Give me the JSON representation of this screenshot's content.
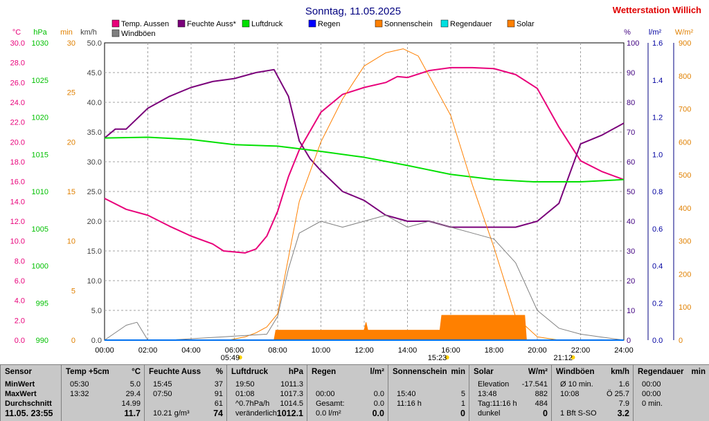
{
  "chart_data": {
    "type": "line",
    "title": "Sonntag, 11.05.2025",
    "station": "Wetterstation Willich",
    "x_ticks": [
      "00:00",
      "02:00",
      "04:00",
      "06:00",
      "08:00",
      "10:00",
      "12:00",
      "14:00",
      "16:00",
      "18:00",
      "20:00",
      "22:00",
      "24:00"
    ],
    "xlim": [
      "00:00",
      "24:00"
    ],
    "grid": true,
    "legend_position": "top",
    "legend": [
      {
        "name": "Temp. Aussen",
        "color": "#e8007a"
      },
      {
        "name": "Feuchte Auss*",
        "color": "#7a007a"
      },
      {
        "name": "Luftdruck",
        "color": "#00e000"
      },
      {
        "name": "Regen",
        "color": "#0000ff"
      },
      {
        "name": "Sonnenschein",
        "color": "#ff8000"
      },
      {
        "name": "Regendauer",
        "color": "#00e0e0"
      },
      {
        "name": "Solar",
        "color": "#ff8000"
      },
      {
        "name": "Windböen",
        "color": "#808080"
      }
    ],
    "axes": [
      {
        "unit": "°C",
        "color": "#e8007a",
        "min": 0,
        "max": 30,
        "ticks": [
          "0.0",
          "2.0",
          "4.0",
          "6.0",
          "8.0",
          "10.0",
          "12.0",
          "14.0",
          "16.0",
          "18.0",
          "20.0",
          "22.0",
          "24.0",
          "26.0",
          "28.0",
          "30.0"
        ]
      },
      {
        "unit": "hPa",
        "color": "#00c000",
        "min": 990,
        "max": 1030,
        "ticks": [
          "990",
          "995",
          "1000",
          "1005",
          "1010",
          "1015",
          "1020",
          "1025",
          "1030"
        ]
      },
      {
        "unit": "min",
        "color": "#e08000",
        "min": 0,
        "max": 30,
        "ticks": [
          "0",
          "5",
          "10",
          "15",
          "20",
          "25",
          "30"
        ]
      },
      {
        "unit": "km/h",
        "color": "#404040",
        "min": 0,
        "max": 50,
        "ticks": [
          "0.0",
          "5.0",
          "10.0",
          "15.0",
          "20.0",
          "25.0",
          "30.0",
          "35.0",
          "40.0",
          "45.0",
          "50.0"
        ]
      },
      {
        "unit": "%",
        "color": "#400080",
        "min": 0,
        "max": 100,
        "ticks": [
          "0",
          "10",
          "20",
          "30",
          "40",
          "50",
          "60",
          "70",
          "80",
          "90",
          "100"
        ]
      },
      {
        "unit": "l/m²",
        "color": "#0000a0",
        "min": 0,
        "max": 1.6,
        "ticks": [
          "0.0",
          "0.2",
          "0.4",
          "0.6",
          "0.8",
          "1.0",
          "1.2",
          "1.4",
          "1.6"
        ]
      },
      {
        "unit": "W/m²",
        "color": "#e08000",
        "min": 0,
        "max": 900,
        "ticks": [
          "0",
          "100",
          "200",
          "300",
          "400",
          "500",
          "600",
          "700",
          "800",
          "900"
        ]
      }
    ],
    "series": [
      {
        "name": "Temp. Aussen",
        "unit": "°C",
        "x": [
          "00:00",
          "01:00",
          "02:00",
          "03:00",
          "04:00",
          "05:00",
          "05:30",
          "06:30",
          "07:00",
          "07:30",
          "08:00",
          "08:30",
          "09:00",
          "10:00",
          "11:00",
          "12:00",
          "13:00",
          "13:32",
          "14:00",
          "15:00",
          "16:00",
          "17:00",
          "18:00",
          "19:00",
          "20:00",
          "21:00",
          "22:00",
          "23:00",
          "24:00"
        ],
        "values": [
          14.3,
          13.2,
          12.6,
          11.5,
          10.5,
          9.7,
          9.0,
          8.8,
          9.2,
          10.5,
          13.0,
          16.5,
          19.2,
          23.0,
          24.8,
          25.5,
          26.0,
          26.6,
          26.5,
          27.2,
          27.5,
          27.5,
          27.4,
          26.8,
          25.4,
          21.5,
          18.1,
          17.0,
          16.2
        ]
      },
      {
        "name": "Feuchte Auss*",
        "unit": "%",
        "x": [
          "00:00",
          "00:30",
          "01:00",
          "02:00",
          "03:00",
          "04:00",
          "05:00",
          "06:00",
          "07:00",
          "07:50",
          "08:30",
          "09:00",
          "09:30",
          "10:00",
          "11:00",
          "12:00",
          "13:00",
          "14:00",
          "15:00",
          "16:00",
          "17:00",
          "18:00",
          "19:00",
          "20:00",
          "21:00",
          "22:00",
          "23:00",
          "24:00"
        ],
        "values": [
          68,
          71,
          71,
          78,
          82,
          85,
          87,
          88,
          90,
          91,
          82,
          67,
          61,
          57,
          50,
          47,
          42,
          40,
          40,
          38,
          38,
          38,
          38,
          40,
          46,
          66,
          69,
          73
        ]
      },
      {
        "name": "Luftdruck",
        "unit": "hPa",
        "x": [
          "00:00",
          "02:00",
          "04:00",
          "06:00",
          "08:00",
          "10:00",
          "12:00",
          "14:00",
          "15:00",
          "16:00",
          "18:00",
          "19:50",
          "20:00",
          "22:00",
          "24:00"
        ],
        "values": [
          1017.2,
          1017.3,
          1017.0,
          1016.3,
          1016.1,
          1015.4,
          1014.6,
          1013.5,
          1012.9,
          1012.3,
          1011.6,
          1011.3,
          1011.3,
          1011.3,
          1011.6
        ]
      },
      {
        "name": "Solar",
        "unit": "W/m²",
        "x": [
          "05:45",
          "06:30",
          "07:00",
          "07:30",
          "08:00",
          "08:30",
          "09:00",
          "10:00",
          "11:00",
          "12:00",
          "13:00",
          "13:48",
          "14:30",
          "15:00",
          "16:00",
          "17:00",
          "18:00",
          "19:00",
          "20:00",
          "21:00"
        ],
        "values": [
          0,
          10,
          22,
          40,
          80,
          250,
          420,
          600,
          730,
          830,
          870,
          882,
          860,
          800,
          680,
          470,
          280,
          70,
          10,
          0
        ]
      },
      {
        "name": "Sonnenschein",
        "unit": "min",
        "x": [
          "00:00",
          "07:50",
          "07:55",
          "12:00",
          "12:05",
          "12:10",
          "12:15",
          "15:30",
          "15:35",
          "19:25",
          "19:30",
          "24:00"
        ],
        "values": [
          0,
          0,
          1.0,
          1.0,
          1.8,
          1.0,
          1.0,
          1.0,
          2.5,
          2.5,
          0,
          0
        ]
      },
      {
        "name": "Windböen",
        "unit": "km/h",
        "x": [
          "00:00",
          "01:00",
          "01:30",
          "02:00",
          "03:00",
          "07:30",
          "08:00",
          "08:30",
          "09:00",
          "10:00",
          "11:00",
          "12:00",
          "13:00",
          "14:00",
          "15:00",
          "16:00",
          "17:00",
          "18:00",
          "19:00",
          "20:00",
          "21:00",
          "22:00",
          "23:00",
          "24:00"
        ],
        "values": [
          0,
          2.5,
          3.0,
          0,
          0,
          1.0,
          4.0,
          12.0,
          18.0,
          20.0,
          19.0,
          20.0,
          21.0,
          19.0,
          20.0,
          19.0,
          18.0,
          17.0,
          13.0,
          5.0,
          2.0,
          1.0,
          0.5,
          0
        ]
      },
      {
        "name": "Regen",
        "unit": "l/m²",
        "x": [
          "00:00",
          "24:00"
        ],
        "values": [
          0,
          0
        ]
      },
      {
        "name": "Regendauer",
        "unit": "min",
        "x": [
          "00:00",
          "24:00"
        ],
        "values": [
          0,
          0
        ]
      }
    ],
    "annotations": [
      {
        "text": "15:23",
        "x": "15:23",
        "meaning": "moonrise"
      },
      {
        "text": "05:49",
        "x": "05:49",
        "meaning": "sunrise"
      },
      {
        "text": "21:12",
        "x": "21:12",
        "meaning": "sunset"
      }
    ]
  },
  "table": {
    "sections": [
      {
        "title": "Sensor",
        "unit": "",
        "rows": [
          [
            "MinWert"
          ],
          [
            "MaxWert"
          ],
          [
            "Durchschnitt"
          ],
          [
            "11.05. 23:55"
          ]
        ]
      },
      {
        "title": "Temp +5cm",
        "unit": "°C",
        "rows": [
          [
            "05:30",
            "5.0"
          ],
          [
            "13:32",
            "29.4"
          ],
          [
            "",
            "14.99"
          ],
          [
            "",
            "11.7"
          ]
        ]
      },
      {
        "title": "Feuchte Auss",
        "unit": "%",
        "rows": [
          [
            "15:45",
            "37"
          ],
          [
            "07:50",
            "91"
          ],
          [
            "",
            "61"
          ],
          [
            "10.21 g/m³",
            "74"
          ]
        ]
      },
      {
        "title": "Luftdruck",
        "unit": "hPa",
        "rows": [
          [
            "19:50",
            "1011.3"
          ],
          [
            "01:08",
            "1017.3"
          ],
          [
            "^0.7hPa/h",
            "1014.5"
          ],
          [
            "veränderlich",
            "1012.1"
          ]
        ]
      },
      {
        "title": "Regen",
        "unit": "l/m²",
        "rows": [
          [
            "",
            ""
          ],
          [
            "00:00",
            "0.0"
          ],
          [
            "Gesamt:",
            "0.0"
          ],
          [
            "0.0 l/m²",
            "0.0"
          ]
        ]
      },
      {
        "title": "Sonnenschein",
        "unit": "min",
        "rows": [
          [
            "",
            ""
          ],
          [
            "15:40",
            "5"
          ],
          [
            "11:16 h",
            "1"
          ],
          [
            "",
            "0"
          ]
        ]
      },
      {
        "title": "Solar",
        "unit": "W/m²",
        "rows": [
          [
            "Elevation",
            "-17.541"
          ],
          [
            "13:48",
            "882"
          ],
          [
            "Tag:11:16 h",
            "484"
          ],
          [
            "dunkel",
            "0"
          ]
        ]
      },
      {
        "title": "Windböen",
        "unit": "km/h",
        "rows": [
          [
            "Ø 10 min.",
            "1.6"
          ],
          [
            "10:08",
            "Ö 25.7"
          ],
          [
            "",
            "7.9"
          ],
          [
            "1 Bft S-SO",
            "3.2"
          ]
        ]
      },
      {
        "title": "Regendauer",
        "unit": "min",
        "rows": [
          [
            "00:00",
            ""
          ],
          [
            "00:00",
            ""
          ],
          [
            "0 min.",
            ""
          ],
          [
            "",
            ""
          ]
        ]
      }
    ]
  }
}
